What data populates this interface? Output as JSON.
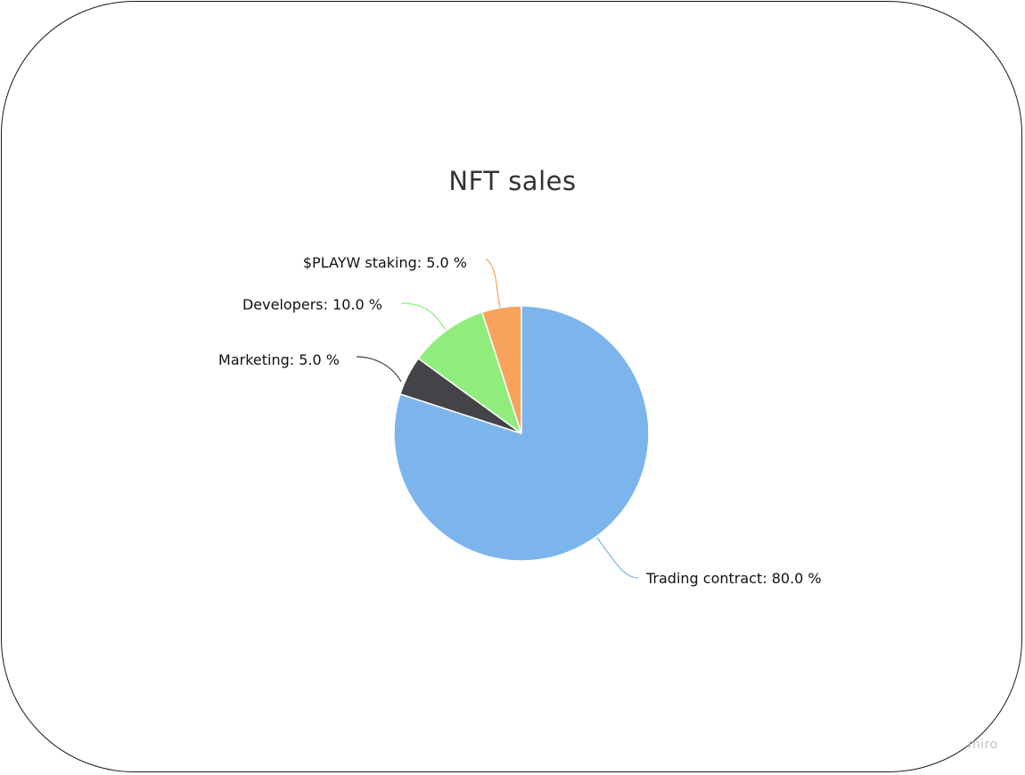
{
  "watermark": "miro",
  "chart_data": {
    "type": "pie",
    "title": "NFT sales",
    "slices": [
      {
        "label": "Trading contract",
        "value": 80.0,
        "color": "#7cb5ec",
        "display": "Trading contract: 80.0 %"
      },
      {
        "label": "Marketing",
        "value": 5.0,
        "color": "#434348",
        "display": "Marketing: 5.0 %"
      },
      {
        "label": "Developers",
        "value": 10.0,
        "color": "#90ed7d",
        "display": "Developers: 10.0 %"
      },
      {
        "label": "$PLAYW staking",
        "value": 5.0,
        "color": "#f7a35c",
        "display": "$PLAYW staking: 5.0 %"
      }
    ]
  }
}
